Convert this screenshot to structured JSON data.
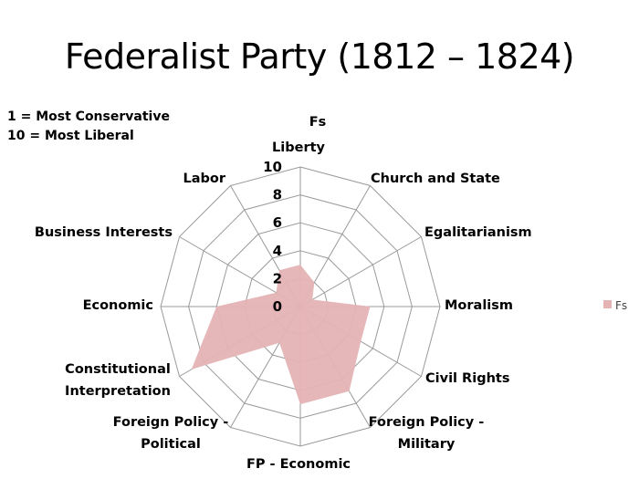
{
  "slide": {
    "title": "Federalist Party (1812 – 1824)",
    "scale_note_line1": "1 = Most Conservative",
    "scale_note_line2": "10 = Most Liberal"
  },
  "chart_data": {
    "type": "radar",
    "title": "Fs",
    "categories": [
      "Liberty",
      "Church and State",
      "Egalitarianism",
      "Moralism",
      "Civil Rights",
      "Foreign Policy - Military",
      "FP - Economic",
      "Foreign Policy - Political",
      "Constitutional Interpretation",
      "Economic",
      "Business Interests",
      "Labor"
    ],
    "series": [
      {
        "name": "Fs",
        "values": [
          3,
          2,
          1,
          5,
          5,
          7,
          7,
          3,
          9,
          6,
          2,
          3
        ]
      }
    ],
    "rlim": [
      0,
      10
    ],
    "ticks": [
      "0",
      "2",
      "4",
      "6",
      "8",
      "10"
    ],
    "grid": true,
    "legend": "right",
    "colors": {
      "series_fill": "#e5b3b4",
      "grid": "#9a9a9a"
    }
  }
}
